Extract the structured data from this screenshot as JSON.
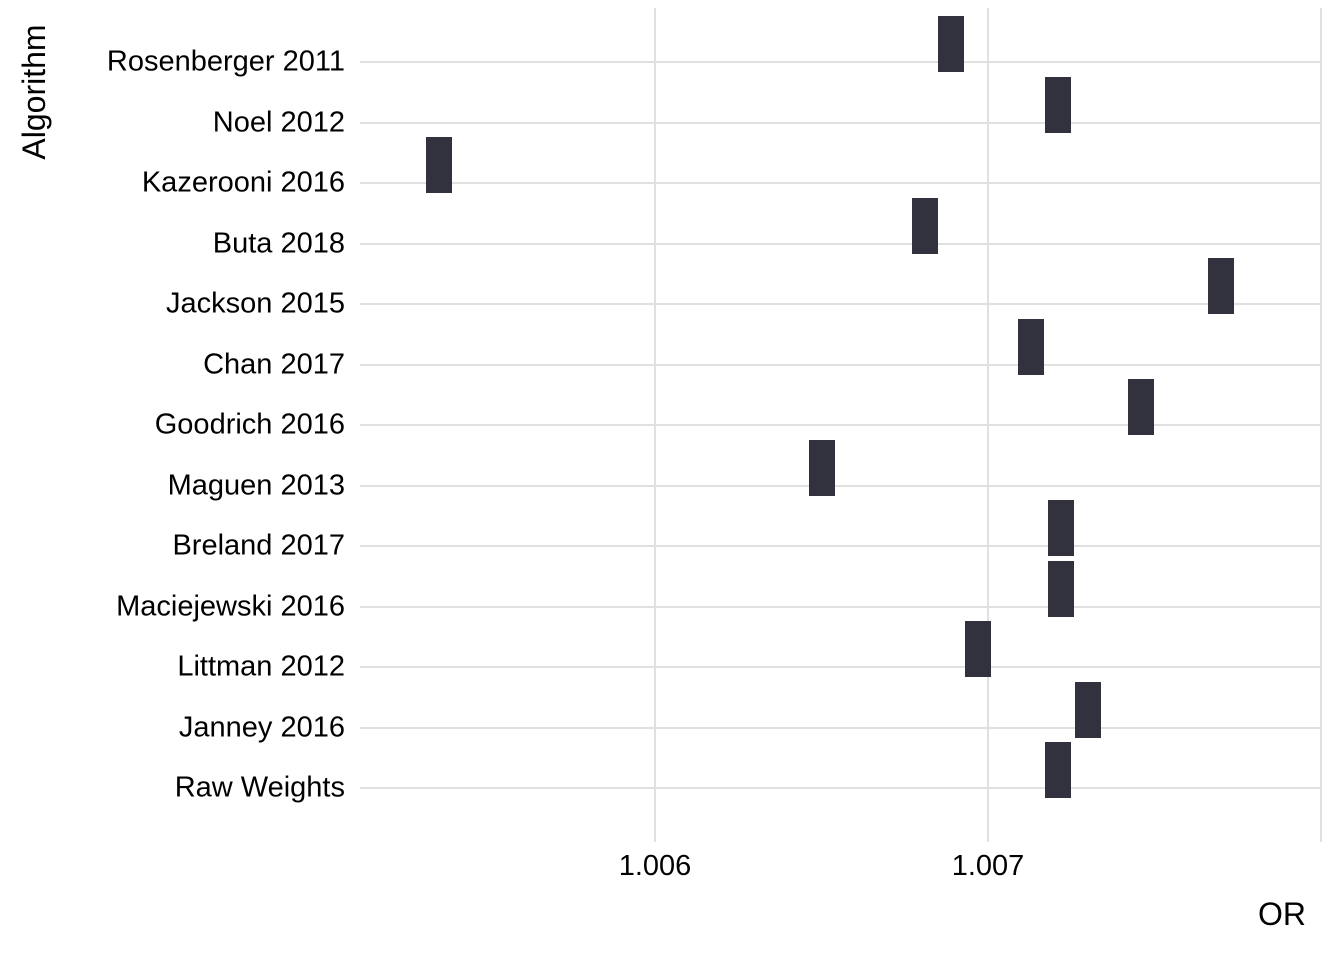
{
  "chart_data": {
    "type": "crossbar",
    "title": "",
    "xlabel": "OR",
    "ylabel": "Algorithm",
    "categories": [
      "Rosenberger 2011",
      "Noel 2012",
      "Kazerooni 2016",
      "Buta 2018",
      "Jackson 2015",
      "Chan 2017",
      "Goodrich 2016",
      "Maguen 2013",
      "Breland 2017",
      "Maciejewski 2016",
      "Littman 2012",
      "Janney 2016",
      "Raw Weights"
    ],
    "values": [
      1.00689,
      1.00721,
      1.00535,
      1.00681,
      1.0077,
      1.00713,
      1.00746,
      1.0065,
      1.00722,
      1.00722,
      1.00697,
      1.0073,
      1.00721
    ],
    "or_halfwidth": 4e-05,
    "x_ticks": [
      {
        "value": 1.006,
        "label": "1.006"
      },
      {
        "value": 1.007,
        "label": "1.007"
      }
    ],
    "xlim": [
      1.00511,
      1.008
    ],
    "grid": {
      "vertical_values": [
        1.006,
        1.007,
        1.008
      ],
      "horizontal": "one per category",
      "color": "#e0e0e0"
    },
    "legend": "none",
    "marker_color": "#31323e",
    "background_color": "#ffffff",
    "text_color": "#000000"
  }
}
